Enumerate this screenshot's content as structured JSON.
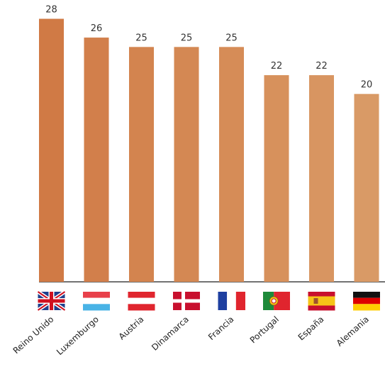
{
  "chart_data": {
    "type": "bar",
    "title": "",
    "xlabel": "",
    "ylabel": "",
    "ylim": [
      0,
      30
    ],
    "grid": false,
    "categories": [
      "Reino Unido",
      "Luxemburgo",
      "Austria",
      "Dinamarca",
      "Francia",
      "Portugal",
      "España",
      "Alemania"
    ],
    "values": [
      28,
      26,
      25,
      25,
      25,
      22,
      22,
      20
    ],
    "value_labels": [
      "28",
      "26",
      "25",
      "25",
      "25",
      "22",
      "22",
      "20"
    ],
    "bar_colors": [
      "#d07a45",
      "#d27f4b",
      "#d3844f",
      "#d48853",
      "#d68c57",
      "#d7915c",
      "#d89561",
      "#d99a66"
    ],
    "flag_icons": [
      "uk-flag-icon",
      "luxembourg-flag-icon",
      "austria-flag-icon",
      "denmark-flag-icon",
      "france-flag-icon",
      "portugal-flag-icon",
      "spain-flag-icon",
      "germany-flag-icon"
    ]
  }
}
